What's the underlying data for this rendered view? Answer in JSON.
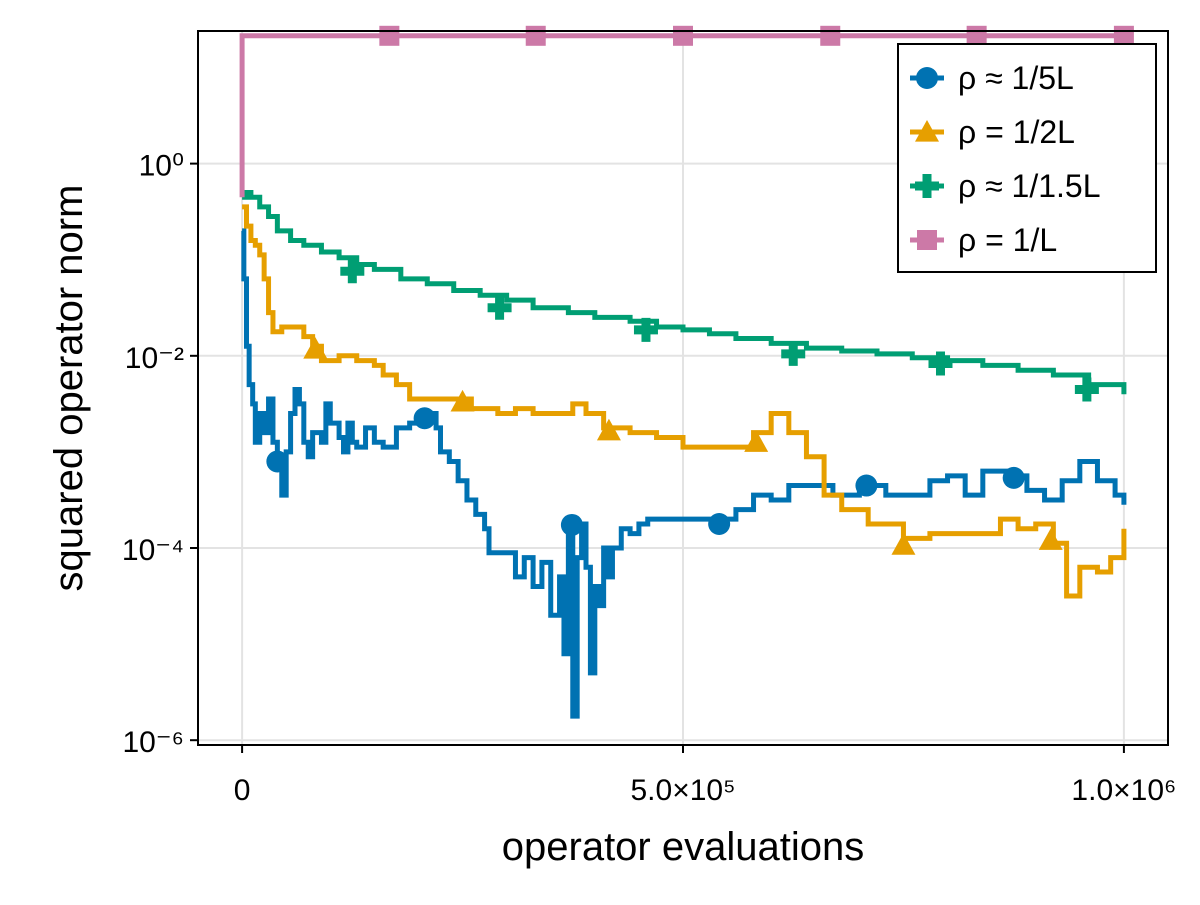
{
  "chart_data": {
    "type": "line",
    "title": "",
    "xlabel": "operator evaluations",
    "ylabel": "squared operator norm",
    "xscale": "linear",
    "yscale": "log10",
    "xlim": [
      -50000,
      1050000
    ],
    "ylim_log10": [
      -6.05,
      1.38
    ],
    "grid": true,
    "legend_position": "top-right",
    "x_ticks": [
      {
        "value": 0,
        "label": "0"
      },
      {
        "value": 500000,
        "label": "5.0×10⁵"
      },
      {
        "value": 1000000,
        "label": "1.0×10⁶"
      }
    ],
    "y_ticks": [
      {
        "log10": 0,
        "label": "10⁰"
      },
      {
        "log10": -2,
        "label": "10⁻²"
      },
      {
        "log10": -4,
        "label": "10⁻⁴"
      },
      {
        "log10": -6,
        "label": "10⁻⁶"
      }
    ],
    "series": [
      {
        "name": "ρ ≈ 1/5L",
        "color": "#0072b2",
        "marker": "circle",
        "points_log10": [
          [
            0,
            -0.7
          ],
          [
            2000,
            -1.2
          ],
          [
            5000,
            -1.9
          ],
          [
            8000,
            -2.3
          ],
          [
            12000,
            -2.5
          ],
          [
            15000,
            -2.9
          ],
          [
            20000,
            -2.6
          ],
          [
            25000,
            -2.8
          ],
          [
            30000,
            -2.45
          ],
          [
            35000,
            -2.9
          ],
          [
            40000,
            -3.1
          ],
          [
            45000,
            -3.45
          ],
          [
            50000,
            -3.0
          ],
          [
            55000,
            -2.6
          ],
          [
            60000,
            -2.35
          ],
          [
            65000,
            -2.5
          ],
          [
            70000,
            -2.9
          ],
          [
            75000,
            -3.05
          ],
          [
            80000,
            -2.8
          ],
          [
            90000,
            -2.9
          ],
          [
            95000,
            -2.5
          ],
          [
            100000,
            -2.7
          ],
          [
            110000,
            -2.85
          ],
          [
            115000,
            -3.0
          ],
          [
            120000,
            -2.7
          ],
          [
            125000,
            -2.9
          ],
          [
            130000,
            -2.95
          ],
          [
            140000,
            -2.75
          ],
          [
            150000,
            -2.9
          ],
          [
            160000,
            -2.95
          ],
          [
            175000,
            -2.75
          ],
          [
            190000,
            -2.7
          ],
          [
            205000,
            -2.6
          ],
          [
            220000,
            -2.75
          ],
          [
            225000,
            -3.0
          ],
          [
            235000,
            -3.1
          ],
          [
            245000,
            -3.3
          ],
          [
            255000,
            -3.5
          ],
          [
            265000,
            -3.65
          ],
          [
            275000,
            -3.8
          ],
          [
            280000,
            -4.05
          ],
          [
            300000,
            -4.05
          ],
          [
            310000,
            -4.3
          ],
          [
            320000,
            -4.1
          ],
          [
            330000,
            -4.4
          ],
          [
            340000,
            -4.15
          ],
          [
            350000,
            -4.7
          ],
          [
            360000,
            -4.3
          ],
          [
            365000,
            -5.1
          ],
          [
            370000,
            -3.85
          ],
          [
            375000,
            -5.75
          ],
          [
            380000,
            -4.1
          ],
          [
            385000,
            -3.75
          ],
          [
            390000,
            -4.2
          ],
          [
            395000,
            -5.3
          ],
          [
            400000,
            -4.4
          ],
          [
            405000,
            -4.6
          ],
          [
            410000,
            -4.0
          ],
          [
            415000,
            -4.3
          ],
          [
            420000,
            -4.0
          ],
          [
            430000,
            -3.8
          ],
          [
            440000,
            -3.85
          ],
          [
            450000,
            -3.75
          ],
          [
            460000,
            -3.7
          ],
          [
            490000,
            -3.7
          ],
          [
            540000,
            -3.7
          ],
          [
            560000,
            -3.6
          ],
          [
            580000,
            -3.45
          ],
          [
            600000,
            -3.5
          ],
          [
            620000,
            -3.35
          ],
          [
            650000,
            -3.35
          ],
          [
            670000,
            -3.45
          ],
          [
            700000,
            -3.35
          ],
          [
            730000,
            -3.45
          ],
          [
            760000,
            -3.45
          ],
          [
            780000,
            -3.3
          ],
          [
            800000,
            -3.25
          ],
          [
            820000,
            -3.45
          ],
          [
            840000,
            -3.2
          ],
          [
            870000,
            -3.25
          ],
          [
            890000,
            -3.4
          ],
          [
            910000,
            -3.5
          ],
          [
            930000,
            -3.3
          ],
          [
            950000,
            -3.1
          ],
          [
            970000,
            -3.3
          ],
          [
            990000,
            -3.45
          ],
          [
            1000000,
            -3.55
          ]
        ],
        "markers_log10": [
          [
            40000,
            -3.1
          ],
          [
            207000,
            -2.65
          ],
          [
            374000,
            -3.76
          ],
          [
            541000,
            -3.75
          ],
          [
            708000,
            -3.35
          ],
          [
            875000,
            -3.27
          ]
        ]
      },
      {
        "name": "ρ = 1/2L",
        "color": "#e69f00",
        "marker": "triangle",
        "points_log10": [
          [
            0,
            -0.45
          ],
          [
            5000,
            -0.65
          ],
          [
            10000,
            -0.8
          ],
          [
            15000,
            -0.85
          ],
          [
            20000,
            -0.95
          ],
          [
            25000,
            -1.2
          ],
          [
            30000,
            -1.55
          ],
          [
            35000,
            -1.75
          ],
          [
            45000,
            -1.7
          ],
          [
            60000,
            -1.7
          ],
          [
            70000,
            -1.8
          ],
          [
            80000,
            -1.9
          ],
          [
            90000,
            -2.05
          ],
          [
            110000,
            -2.0
          ],
          [
            130000,
            -2.05
          ],
          [
            150000,
            -2.1
          ],
          [
            160000,
            -2.2
          ],
          [
            175000,
            -2.3
          ],
          [
            190000,
            -2.45
          ],
          [
            210000,
            -2.45
          ],
          [
            240000,
            -2.45
          ],
          [
            260000,
            -2.55
          ],
          [
            290000,
            -2.6
          ],
          [
            310000,
            -2.55
          ],
          [
            330000,
            -2.6
          ],
          [
            360000,
            -2.6
          ],
          [
            375000,
            -2.5
          ],
          [
            390000,
            -2.6
          ],
          [
            410000,
            -2.75
          ],
          [
            440000,
            -2.8
          ],
          [
            470000,
            -2.85
          ],
          [
            500000,
            -2.95
          ],
          [
            530000,
            -2.95
          ],
          [
            560000,
            -2.95
          ],
          [
            580000,
            -2.8
          ],
          [
            600000,
            -2.6
          ],
          [
            620000,
            -2.8
          ],
          [
            640000,
            -3.05
          ],
          [
            660000,
            -3.45
          ],
          [
            680000,
            -3.6
          ],
          [
            710000,
            -3.75
          ],
          [
            750000,
            -3.9
          ],
          [
            780000,
            -3.85
          ],
          [
            820000,
            -3.85
          ],
          [
            860000,
            -3.7
          ],
          [
            880000,
            -3.8
          ],
          [
            900000,
            -3.75
          ],
          [
            920000,
            -3.95
          ],
          [
            935000,
            -4.5
          ],
          [
            950000,
            -4.2
          ],
          [
            970000,
            -4.25
          ],
          [
            985000,
            -4.1
          ],
          [
            1000000,
            -3.8
          ]
        ],
        "markers_log10": [
          [
            83000,
            -1.93
          ],
          [
            250000,
            -2.48
          ],
          [
            416000,
            -2.78
          ],
          [
            583000,
            -2.9
          ],
          [
            750000,
            -3.97
          ],
          [
            917000,
            -3.92
          ]
        ]
      },
      {
        "name": "ρ ≈ 1/1.5L",
        "color": "#009e73",
        "marker": "cross",
        "points_log10": [
          [
            0,
            -0.35
          ],
          [
            5000,
            -0.3
          ],
          [
            10000,
            -0.35
          ],
          [
            20000,
            -0.45
          ],
          [
            30000,
            -0.55
          ],
          [
            40000,
            -0.7
          ],
          [
            55000,
            -0.8
          ],
          [
            70000,
            -0.85
          ],
          [
            90000,
            -0.92
          ],
          [
            110000,
            -0.98
          ],
          [
            130000,
            -1.05
          ],
          [
            150000,
            -1.1
          ],
          [
            180000,
            -1.2
          ],
          [
            210000,
            -1.25
          ],
          [
            240000,
            -1.32
          ],
          [
            270000,
            -1.37
          ],
          [
            300000,
            -1.42
          ],
          [
            330000,
            -1.5
          ],
          [
            370000,
            -1.55
          ],
          [
            400000,
            -1.6
          ],
          [
            440000,
            -1.64
          ],
          [
            470000,
            -1.7
          ],
          [
            500000,
            -1.73
          ],
          [
            530000,
            -1.77
          ],
          [
            560000,
            -1.82
          ],
          [
            600000,
            -1.87
          ],
          [
            640000,
            -1.92
          ],
          [
            680000,
            -1.95
          ],
          [
            720000,
            -1.98
          ],
          [
            760000,
            -2.02
          ],
          [
            800000,
            -2.05
          ],
          [
            840000,
            -2.1
          ],
          [
            880000,
            -2.15
          ],
          [
            920000,
            -2.2
          ],
          [
            960000,
            -2.3
          ],
          [
            1000000,
            -2.4
          ]
        ],
        "markers_log10": [
          [
            125000,
            -1.12
          ],
          [
            292000,
            -1.5
          ],
          [
            458000,
            -1.73
          ],
          [
            625000,
            -1.98
          ],
          [
            792000,
            -2.08
          ],
          [
            958000,
            -2.35
          ]
        ]
      },
      {
        "name": "ρ = 1/L",
        "color": "#cc79a7",
        "marker": "square",
        "points_log10": [
          [
            0,
            -0.35
          ],
          [
            0,
            1.33
          ],
          [
            1000000,
            1.33
          ]
        ],
        "markers_log10": [
          [
            167000,
            1.33
          ],
          [
            333000,
            1.33
          ],
          [
            500000,
            1.33
          ],
          [
            667000,
            1.33
          ],
          [
            833000,
            1.33
          ],
          [
            1000000,
            1.33
          ]
        ]
      }
    ]
  }
}
